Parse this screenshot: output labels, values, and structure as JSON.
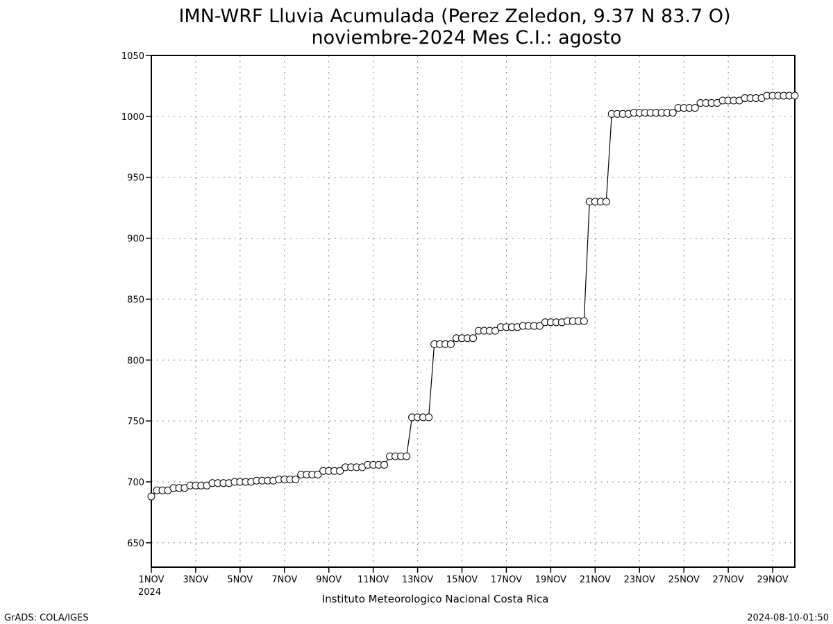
{
  "chart_data": {
    "type": "line",
    "title": "IMN-WRF  Lluvia Acumulada  (Perez Zeledon, 9.37  N 83.7  O)",
    "subtitle": "noviembre-2024 Mes C.I.: agosto",
    "xlabel": "Instituto Meteorologico Nacional Costa Rica",
    "ylabel": "",
    "ylim": [
      630,
      1050
    ],
    "xlim": [
      1,
      30
    ],
    "grid": true,
    "marker": "open-circle",
    "y_ticks": [
      "650",
      "700",
      "750",
      "800",
      "850",
      "900",
      "950",
      "1000",
      "1050"
    ],
    "x_ticks": [
      {
        "day": 1,
        "label": "1NOV"
      },
      {
        "day": 3,
        "label": "3NOV"
      },
      {
        "day": 5,
        "label": "5NOV"
      },
      {
        "day": 7,
        "label": "7NOV"
      },
      {
        "day": 9,
        "label": "9NOV"
      },
      {
        "day": 11,
        "label": "11NOV"
      },
      {
        "day": 13,
        "label": "13NOV"
      },
      {
        "day": 15,
        "label": "15NOV"
      },
      {
        "day": 17,
        "label": "17NOV"
      },
      {
        "day": 19,
        "label": "19NOV"
      },
      {
        "day": 21,
        "label": "21NOV"
      },
      {
        "day": 23,
        "label": "23NOV"
      },
      {
        "day": 25,
        "label": "25NOV"
      },
      {
        "day": 27,
        "label": "27NOV"
      },
      {
        "day": 29,
        "label": "29NOV"
      }
    ],
    "x_year_label": "2024",
    "series": [
      {
        "day_steps": [
          [
            688,
            693,
            693,
            693
          ],
          [
            695,
            695,
            695,
            697
          ],
          [
            697,
            697,
            697,
            699
          ],
          [
            699,
            699,
            699,
            700
          ],
          [
            700,
            700,
            700,
            701
          ],
          [
            701,
            701,
            701,
            702
          ],
          [
            702,
            702,
            702,
            706
          ],
          [
            706,
            706,
            706,
            709
          ],
          [
            709,
            709,
            709,
            712
          ],
          [
            712,
            712,
            712,
            714
          ],
          [
            714,
            714,
            714,
            721
          ],
          [
            721,
            721,
            721,
            753
          ],
          [
            753,
            753,
            753,
            813
          ],
          [
            813,
            813,
            813,
            818
          ],
          [
            818,
            818,
            818,
            824
          ],
          [
            824,
            824,
            824,
            827
          ],
          [
            827,
            827,
            827,
            828
          ],
          [
            828,
            828,
            828,
            831
          ],
          [
            831,
            831,
            831,
            832
          ],
          [
            832,
            832,
            832,
            930
          ],
          [
            930,
            930,
            930,
            1002
          ],
          [
            1002,
            1002,
            1002,
            1003
          ],
          [
            1003,
            1003,
            1003,
            1003
          ],
          [
            1003,
            1003,
            1003,
            1007
          ],
          [
            1007,
            1007,
            1007,
            1011
          ],
          [
            1011,
            1011,
            1011,
            1013
          ],
          [
            1013,
            1013,
            1013,
            1015
          ],
          [
            1015,
            1015,
            1015,
            1017
          ],
          [
            1017,
            1017,
            1017,
            1017
          ]
        ]
      }
    ]
  },
  "footer": {
    "left": "GrADS: COLA/IGES",
    "right": "2024-08-10-01:50"
  }
}
